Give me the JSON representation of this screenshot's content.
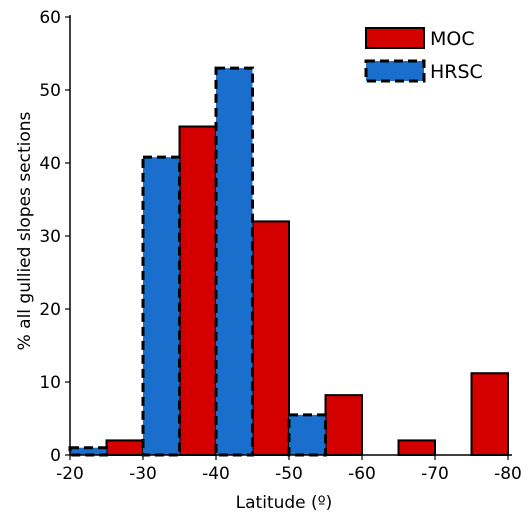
{
  "chart_data": {
    "type": "bar",
    "xlabel": "Latitude (º)",
    "ylabel": "% all gullied slopes sections",
    "xlim": [
      -20,
      -80
    ],
    "ylim": [
      0,
      60
    ],
    "xticks": [
      "-20",
      "-30",
      "-40",
      "-50",
      "-60",
      "-70",
      "-80"
    ],
    "yticks": [
      "0",
      "10",
      "20",
      "30",
      "40",
      "50",
      "60"
    ],
    "bin_width": 5,
    "legend_position": "top-right",
    "series": [
      {
        "name": "MOC",
        "color": "#d40000",
        "edges": [
          [
            -25,
            -30
          ],
          [
            -35,
            -40
          ],
          [
            -45,
            -50
          ],
          [
            -55,
            -60
          ],
          [
            -65,
            -70
          ],
          [
            -75,
            -80
          ]
        ],
        "values": [
          2,
          45,
          32,
          8.2,
          2,
          11.2
        ]
      },
      {
        "name": "HRSC",
        "color": "#1a6fcc",
        "edges": [
          [
            -20,
            -25
          ],
          [
            -30,
            -35
          ],
          [
            -40,
            -45
          ],
          [
            -50,
            -55
          ]
        ],
        "values": [
          1,
          40.8,
          53,
          5.5
        ]
      }
    ]
  }
}
